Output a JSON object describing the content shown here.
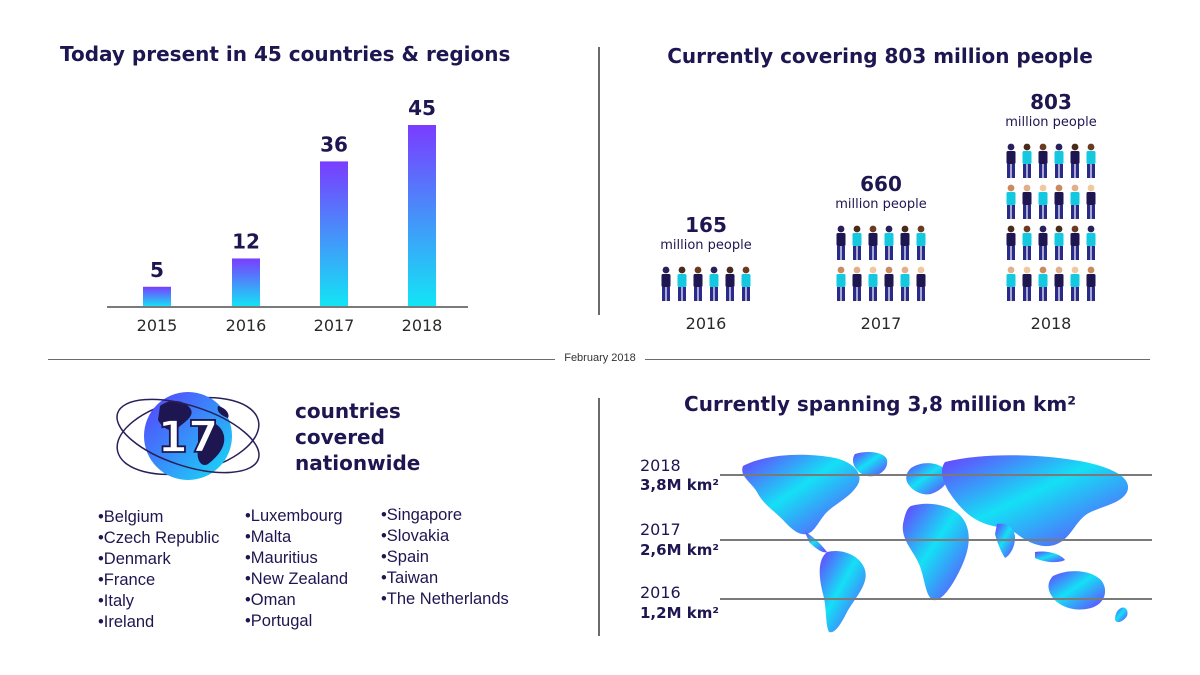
{
  "date_label": "February 2018",
  "chart_data": [
    {
      "type": "bar",
      "title": "Today present in 45 countries & regions",
      "categories": [
        "2015",
        "2016",
        "2017",
        "2018"
      ],
      "values": [
        5,
        12,
        36,
        45
      ],
      "value_labels": [
        "5",
        "12",
        "36",
        "45"
      ],
      "ylim": [
        0,
        45
      ],
      "grid": false
    },
    {
      "type": "pictogram",
      "title": "Currently covering 803 million people",
      "unit_label": "million people",
      "categories": [
        "2016",
        "2017",
        "2018"
      ],
      "values": [
        165,
        660,
        803
      ],
      "value_labels": [
        "165",
        "660",
        "803"
      ],
      "icon_rows": [
        1,
        2,
        4
      ],
      "icons_per_row": 6
    },
    {
      "type": "table",
      "title": "Currently spanning 3,8 million km²",
      "rows": [
        {
          "year": "2018",
          "value": 3.8,
          "value_label": "3,8M km²"
        },
        {
          "year": "2017",
          "value": 2.6,
          "value_label": "2,6M km²"
        },
        {
          "year": "2016",
          "value": 1.2,
          "value_label": "1,2M km²"
        }
      ]
    }
  ],
  "nationwide": {
    "count": "17",
    "label_lines": [
      "countries",
      "covered",
      "nationwide"
    ],
    "columns": [
      [
        "Belgium",
        "Czech Republic",
        "Denmark",
        "France",
        "Italy",
        "Ireland"
      ],
      [
        "Luxembourg",
        "Malta",
        "Mauritius",
        "New Zealand",
        "Oman",
        "Portugal"
      ],
      [
        "Singapore",
        "Slovakia",
        "Spain",
        "Taiwan",
        "The Netherlands"
      ]
    ]
  },
  "colors": {
    "navy": "#1e1650",
    "purple": "#6c3cff",
    "cyan": "#14e0f5",
    "divider": "#6b6b6b"
  },
  "icons": {
    "globe": "globe-icon",
    "person": "person-icon",
    "map": "world-map-icon"
  }
}
